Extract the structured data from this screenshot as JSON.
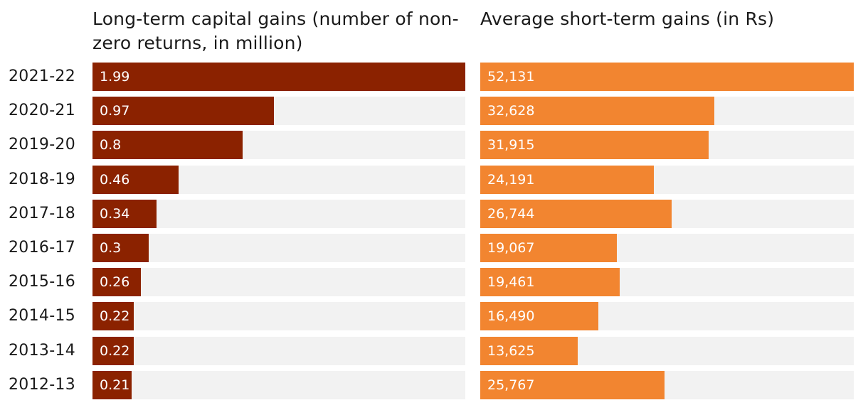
{
  "chart_data": [
    {
      "type": "bar",
      "orientation": "horizontal",
      "title": "Long-term capital gains (number of non-zero returns, in million)",
      "categories": [
        "2021-22",
        "2020-21",
        "2019-20",
        "2018-19",
        "2017-18",
        "2016-17",
        "2015-16",
        "2014-15",
        "2013-14",
        "2012-13"
      ],
      "values": [
        1.99,
        0.97,
        0.8,
        0.46,
        0.34,
        0.3,
        0.26,
        0.22,
        0.22,
        0.21
      ],
      "labels": [
        "1.99",
        "0.97",
        "0.8",
        "0.46",
        "0.34",
        "0.3",
        "0.26",
        "0.22",
        "0.22",
        "0.21"
      ],
      "xlim": [
        0,
        1.99
      ],
      "color": "#8b2200",
      "track_color": "#f2f2f2"
    },
    {
      "type": "bar",
      "orientation": "horizontal",
      "title": "Average short-term gains (in Rs)",
      "categories": [
        "2021-22",
        "2020-21",
        "2019-20",
        "2018-19",
        "2017-18",
        "2016-17",
        "2015-16",
        "2014-15",
        "2013-14",
        "2012-13"
      ],
      "values": [
        52131,
        32628,
        31915,
        24191,
        26744,
        19067,
        19461,
        16490,
        13625,
        25767
      ],
      "labels": [
        "52,131",
        "32,628",
        "31,915",
        "24,191",
        "26,744",
        "19,067",
        "19,461",
        "16,490",
        "13,625",
        "25,767"
      ],
      "xlim": [
        0,
        52131
      ],
      "color": "#f28530",
      "track_color": "#f2f2f2"
    }
  ]
}
